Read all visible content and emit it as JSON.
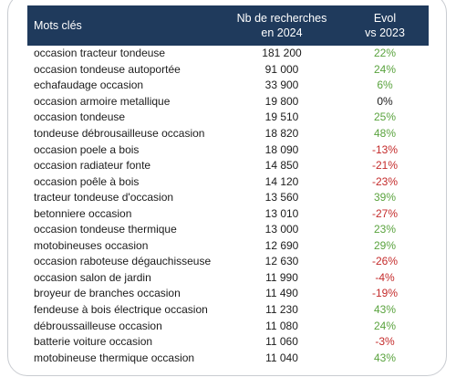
{
  "table": {
    "headers": {
      "keywords": "Mots clés",
      "searches_line1": "Nb de recherches",
      "searches_line2": "en 2024",
      "evol_line1": "Evol",
      "evol_line2": "vs 2023"
    },
    "rows": [
      {
        "keyword": "occasion tracteur tondeuse",
        "searches": "181 200",
        "evol": "22%",
        "trend": "pos"
      },
      {
        "keyword": "occasion tondeuse autoportée",
        "searches": "91 000",
        "evol": "24%",
        "trend": "pos"
      },
      {
        "keyword": "echafaudage occasion",
        "searches": "33 900",
        "evol": "6%",
        "trend": "pos"
      },
      {
        "keyword": "occasion armoire metallique",
        "searches": "19 800",
        "evol": "0%",
        "trend": "zero"
      },
      {
        "keyword": "occasion tondeuse",
        "searches": "19 510",
        "evol": "25%",
        "trend": "pos"
      },
      {
        "keyword": "tondeuse débrousailleuse occasion",
        "searches": "18 820",
        "evol": "48%",
        "trend": "pos"
      },
      {
        "keyword": "occasion poele a bois",
        "searches": "18 090",
        "evol": "-13%",
        "trend": "neg"
      },
      {
        "keyword": "occasion radiateur fonte",
        "searches": "14 850",
        "evol": "-21%",
        "trend": "neg"
      },
      {
        "keyword": "occasion poêle à bois",
        "searches": "14 120",
        "evol": "-23%",
        "trend": "neg"
      },
      {
        "keyword": "tracteur tondeuse d'occasion",
        "searches": "13 560",
        "evol": "39%",
        "trend": "pos"
      },
      {
        "keyword": "betonniere occasion",
        "searches": "13 010",
        "evol": "-27%",
        "trend": "neg"
      },
      {
        "keyword": "occasion tondeuse thermique",
        "searches": "13 000",
        "evol": "23%",
        "trend": "pos"
      },
      {
        "keyword": "motobineuses occasion",
        "searches": "12 690",
        "evol": "29%",
        "trend": "pos"
      },
      {
        "keyword": "occasion raboteuse dégauchisseuse",
        "searches": "12 630",
        "evol": "-26%",
        "trend": "neg"
      },
      {
        "keyword": "occasion salon de jardin",
        "searches": "11 990",
        "evol": "-4%",
        "trend": "neg"
      },
      {
        "keyword": "broyeur de branches occasion",
        "searches": "11 490",
        "evol": "-19%",
        "trend": "neg"
      },
      {
        "keyword": "fendeuse à bois électrique occasion",
        "searches": "11 230",
        "evol": "43%",
        "trend": "pos"
      },
      {
        "keyword": "débroussailleuse occasion",
        "searches": "11 080",
        "evol": "24%",
        "trend": "pos"
      },
      {
        "keyword": "batterie voiture occasion",
        "searches": "11 060",
        "evol": "-3%",
        "trend": "neg"
      },
      {
        "keyword": "motobineuse thermique occasion",
        "searches": "11 040",
        "evol": "43%",
        "trend": "pos"
      }
    ]
  },
  "colors": {
    "header_bg": "#1f3a5c",
    "positive": "#5aa33e",
    "negative": "#c42b2b"
  }
}
